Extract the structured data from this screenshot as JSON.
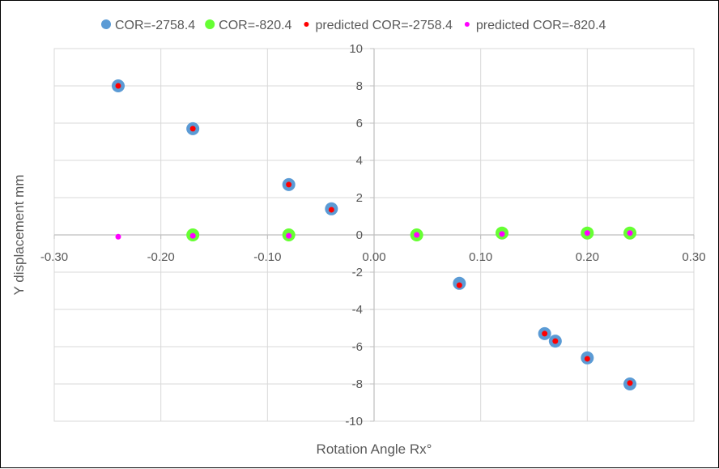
{
  "chart_data": {
    "type": "scatter",
    "title": "",
    "xlabel": "Rotation Angle Rx°",
    "ylabel": "Y displacement mm",
    "xlim": [
      -0.3,
      0.3
    ],
    "ylim": [
      -10,
      10
    ],
    "x_ticks": [
      "-0.30",
      "-0.20",
      "-0.10",
      "0.00",
      "0.10",
      "0.20",
      "0.30"
    ],
    "y_ticks": [
      "-10",
      "-8",
      "-6",
      "-4",
      "-2",
      "0",
      "2",
      "4",
      "6",
      "8",
      "10"
    ],
    "grid": true,
    "legend_position": "top",
    "series": [
      {
        "name": "COR=-2758.4",
        "color": "#5b9bd5",
        "marker": "large-circle",
        "points": [
          [
            -0.24,
            8.0
          ],
          [
            -0.17,
            5.7
          ],
          [
            -0.08,
            2.7
          ],
          [
            -0.04,
            1.4
          ],
          [
            0.08,
            -2.6
          ],
          [
            0.16,
            -5.3
          ],
          [
            0.17,
            -5.7
          ],
          [
            0.2,
            -6.6
          ],
          [
            0.24,
            -8.0
          ]
        ]
      },
      {
        "name": "COR=-820.4",
        "color": "#66ff33",
        "marker": "large-circle",
        "points": [
          [
            -0.17,
            0.0
          ],
          [
            -0.08,
            0.0
          ],
          [
            0.04,
            0.0
          ],
          [
            0.12,
            0.1
          ],
          [
            0.2,
            0.1
          ],
          [
            0.24,
            0.1
          ]
        ]
      },
      {
        "name": "predicted  COR=-2758.4",
        "color": "#ff0000",
        "marker": "small-circle",
        "points": [
          [
            -0.24,
            8.0
          ],
          [
            -0.17,
            5.7
          ],
          [
            -0.08,
            2.7
          ],
          [
            -0.04,
            1.35
          ],
          [
            0.08,
            -2.7
          ],
          [
            0.16,
            -5.3
          ],
          [
            0.17,
            -5.7
          ],
          [
            0.2,
            -6.65
          ],
          [
            0.24,
            -7.95
          ]
        ]
      },
      {
        "name": "predicted COR=-820.4",
        "color": "#ff00ff",
        "marker": "small-circle",
        "points": [
          [
            -0.24,
            -0.1
          ],
          [
            -0.17,
            -0.05
          ],
          [
            -0.08,
            -0.05
          ],
          [
            0.04,
            0.0
          ],
          [
            0.12,
            0.05
          ],
          [
            0.2,
            0.1
          ],
          [
            0.24,
            0.1
          ]
        ]
      }
    ]
  }
}
